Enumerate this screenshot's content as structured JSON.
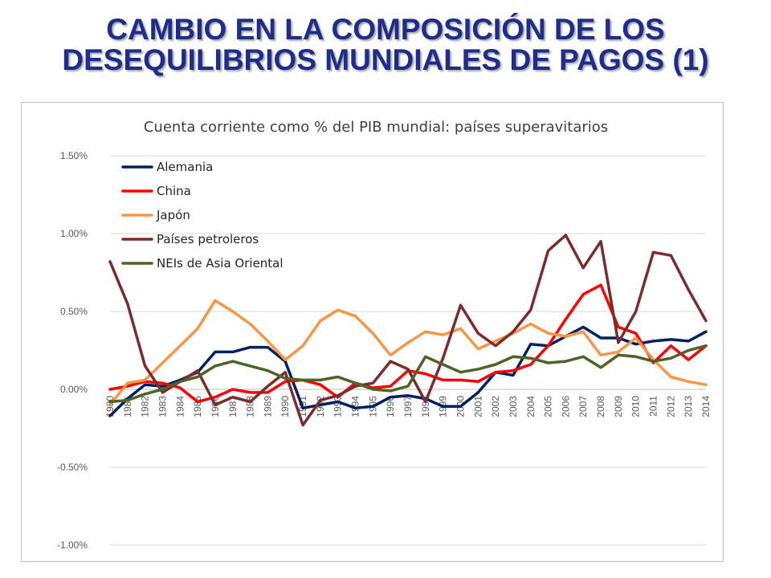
{
  "slide": {
    "title_line1": "CAMBIO EN LA COMPOSICIÓN DE LOS",
    "title_line2": "DESEQUILIBRIOS MUNDIALES DE PAGOS (1)",
    "title_color": "#1f2d8a"
  },
  "chart_data": {
    "type": "line",
    "title": "Cuenta corriente como % del PIB mundial: países superavitarios",
    "xlabel": "",
    "ylabel": "",
    "ylim": [
      -1.0,
      1.5
    ],
    "y_ticks": [
      "1.50%",
      "1.00%",
      "0.50%",
      "0.00%",
      "-0.50%",
      "-1.00%"
    ],
    "y_tick_values": [
      1.5,
      1.0,
      0.5,
      0.0,
      -0.5,
      -1.0
    ],
    "grid": true,
    "legend_position": "top-left",
    "x": [
      "1980",
      "1981",
      "1982",
      "1983",
      "1984",
      "1985",
      "1986",
      "1987",
      "1988",
      "1989",
      "1990",
      "1991",
      "1992",
      "1993",
      "1994",
      "1995",
      "1996",
      "1997",
      "1998",
      "1999",
      "2000",
      "2001",
      "2002",
      "2003",
      "2004",
      "2005",
      "2006",
      "2007",
      "2008",
      "2009",
      "2010",
      "2011",
      "2012",
      "2013",
      "2014"
    ],
    "series": [
      {
        "name": "Alemania",
        "color": "#002060",
        "values": [
          -0.17,
          -0.06,
          0.03,
          0.02,
          0.06,
          0.11,
          0.24,
          0.24,
          0.27,
          0.27,
          0.18,
          -0.12,
          -0.1,
          -0.08,
          -0.12,
          -0.11,
          -0.05,
          -0.04,
          -0.06,
          -0.11,
          -0.11,
          -0.02,
          0.11,
          0.09,
          0.29,
          0.28,
          0.34,
          0.4,
          0.33,
          0.33,
          0.29,
          0.31,
          0.32,
          0.31,
          0.37
        ]
      },
      {
        "name": "China",
        "color": "#ff0000",
        "values": [
          0.0,
          0.02,
          0.05,
          0.04,
          0.01,
          -0.08,
          -0.05,
          0.0,
          -0.02,
          -0.02,
          0.05,
          0.06,
          0.03,
          -0.05,
          0.04,
          0.01,
          0.02,
          0.12,
          0.1,
          0.06,
          0.06,
          0.05,
          0.11,
          0.12,
          0.16,
          0.28,
          0.45,
          0.61,
          0.67,
          0.4,
          0.36,
          0.17,
          0.28,
          0.19,
          0.28
        ]
      },
      {
        "name": "Japón",
        "color": "#f79646",
        "values": [
          -0.1,
          0.04,
          0.06,
          0.17,
          0.28,
          0.39,
          0.57,
          0.5,
          0.42,
          0.31,
          0.19,
          0.28,
          0.44,
          0.51,
          0.47,
          0.36,
          0.22,
          0.3,
          0.37,
          0.35,
          0.39,
          0.26,
          0.31,
          0.36,
          0.42,
          0.36,
          0.34,
          0.37,
          0.22,
          0.24,
          0.33,
          0.19,
          0.08,
          0.05,
          0.03
        ]
      },
      {
        "name": "Países petroleros",
        "color": "#7b2c2c",
        "values": [
          0.82,
          0.55,
          0.15,
          -0.02,
          0.05,
          0.12,
          -0.1,
          -0.05,
          -0.08,
          0.02,
          0.11,
          -0.23,
          -0.07,
          -0.04,
          0.02,
          0.04,
          0.18,
          0.13,
          -0.08,
          0.2,
          0.54,
          0.36,
          0.28,
          0.37,
          0.51,
          0.89,
          0.99,
          0.78,
          0.95,
          0.3,
          0.5,
          0.88,
          0.86,
          0.64,
          0.44
        ]
      },
      {
        "name": "NEIs de Asia Oriental",
        "color": "#4f6228",
        "values": [
          -0.08,
          -0.07,
          -0.03,
          0.0,
          0.05,
          0.08,
          0.15,
          0.18,
          0.15,
          0.12,
          0.07,
          0.06,
          0.06,
          0.08,
          0.04,
          0.0,
          -0.01,
          0.02,
          0.21,
          0.16,
          0.11,
          0.13,
          0.16,
          0.21,
          0.2,
          0.17,
          0.18,
          0.21,
          0.14,
          0.22,
          0.21,
          0.18,
          0.2,
          0.25,
          0.28
        ]
      }
    ]
  }
}
